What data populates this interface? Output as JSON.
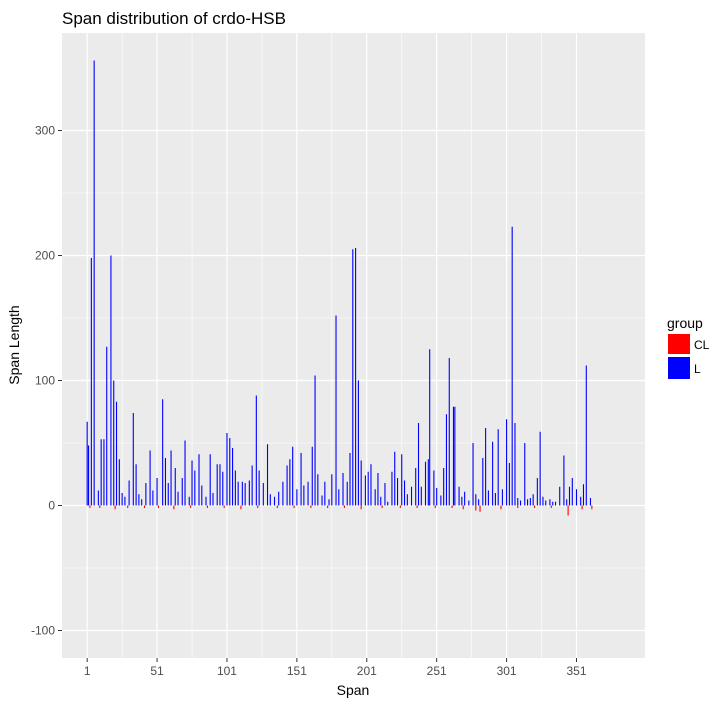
{
  "chart_data": {
    "type": "bar",
    "title": "Span distribution of crdo-HSB",
    "xlabel": "Span",
    "ylabel": "Span Length",
    "xlim": [
      -17,
      400
    ],
    "ylim": [
      -122,
      378
    ],
    "x_ticks": [
      1,
      51,
      101,
      151,
      201,
      251,
      301,
      351
    ],
    "y_ticks": [
      -100,
      0,
      100,
      200,
      300
    ],
    "grid": true,
    "legend": {
      "title": "group",
      "placement": "right",
      "entries": [
        {
          "label": "CL",
          "color": "#ff0000"
        },
        {
          "label": "L",
          "color": "#0000ff"
        }
      ]
    },
    "series": [
      {
        "name": "L",
        "color": "#0000ff",
        "points": [
          [
            1,
            67
          ],
          [
            2,
            48
          ],
          [
            4,
            198
          ],
          [
            6,
            356
          ],
          [
            9,
            12
          ],
          [
            11,
            53
          ],
          [
            13,
            53
          ],
          [
            15,
            127
          ],
          [
            18,
            200
          ],
          [
            20,
            100
          ],
          [
            22,
            83
          ],
          [
            24,
            37
          ],
          [
            26,
            10
          ],
          [
            28,
            7
          ],
          [
            31,
            20
          ],
          [
            34,
            74
          ],
          [
            36,
            33
          ],
          [
            38,
            9
          ],
          [
            40,
            5
          ],
          [
            43,
            18
          ],
          [
            46,
            44
          ],
          [
            48,
            12
          ],
          [
            51,
            22
          ],
          [
            55,
            85
          ],
          [
            57,
            38
          ],
          [
            59,
            18
          ],
          [
            61,
            44
          ],
          [
            64,
            30
          ],
          [
            66,
            11
          ],
          [
            69,
            22
          ],
          [
            71,
            52
          ],
          [
            74,
            7
          ],
          [
            76,
            36
          ],
          [
            78,
            28
          ],
          [
            81,
            41
          ],
          [
            83,
            16
          ],
          [
            86,
            7
          ],
          [
            89,
            41
          ],
          [
            91,
            10
          ],
          [
            94,
            33
          ],
          [
            96,
            33
          ],
          [
            98,
            27
          ],
          [
            101,
            58
          ],
          [
            103,
            54
          ],
          [
            105,
            46
          ],
          [
            107,
            28
          ],
          [
            109,
            19
          ],
          [
            112,
            19
          ],
          [
            114,
            18
          ],
          [
            117,
            20
          ],
          [
            119,
            32
          ],
          [
            122,
            88
          ],
          [
            124,
            28
          ],
          [
            127,
            18
          ],
          [
            130,
            49
          ],
          [
            132,
            9
          ],
          [
            135,
            7
          ],
          [
            138,
            11
          ],
          [
            141,
            19
          ],
          [
            144,
            32
          ],
          [
            146,
            37
          ],
          [
            148,
            47
          ],
          [
            151,
            13
          ],
          [
            154,
            42
          ],
          [
            156,
            16
          ],
          [
            159,
            19
          ],
          [
            162,
            47
          ],
          [
            164,
            104
          ],
          [
            166,
            25
          ],
          [
            169,
            8
          ],
          [
            171,
            19
          ],
          [
            174,
            5
          ],
          [
            176,
            25
          ],
          [
            179,
            152
          ],
          [
            181,
            13
          ],
          [
            184,
            26
          ],
          [
            187,
            19
          ],
          [
            189,
            42
          ],
          [
            191,
            205
          ],
          [
            193,
            206
          ],
          [
            195,
            100
          ],
          [
            197,
            36
          ],
          [
            200,
            24
          ],
          [
            202,
            27
          ],
          [
            204,
            33
          ],
          [
            207,
            13
          ],
          [
            209,
            26
          ],
          [
            211,
            7
          ],
          [
            214,
            18
          ],
          [
            216,
            3
          ],
          [
            219,
            27
          ],
          [
            221,
            43
          ],
          [
            223,
            22
          ],
          [
            226,
            41
          ],
          [
            228,
            20
          ],
          [
            230,
            9
          ],
          [
            233,
            15
          ],
          [
            236,
            30
          ],
          [
            238,
            66
          ],
          [
            240,
            15
          ],
          [
            243,
            35
          ],
          [
            245,
            37
          ],
          [
            246,
            125
          ],
          [
            249,
            28
          ],
          [
            251,
            14
          ],
          [
            254,
            8
          ],
          [
            256,
            30
          ],
          [
            258,
            73
          ],
          [
            260,
            118
          ],
          [
            263,
            79
          ],
          [
            264,
            79
          ],
          [
            267,
            15
          ],
          [
            269,
            7
          ],
          [
            271,
            11
          ],
          [
            274,
            4
          ],
          [
            277,
            50
          ],
          [
            279,
            9
          ],
          [
            281,
            5
          ],
          [
            284,
            38
          ],
          [
            286,
            62
          ],
          [
            288,
            12
          ],
          [
            291,
            51
          ],
          [
            293,
            10
          ],
          [
            295,
            61
          ],
          [
            298,
            13
          ],
          [
            301,
            69
          ],
          [
            303,
            34
          ],
          [
            305,
            223
          ],
          [
            307,
            66
          ],
          [
            309,
            6
          ],
          [
            311,
            4
          ],
          [
            314,
            50
          ],
          [
            316,
            5
          ],
          [
            318,
            6
          ],
          [
            320,
            9
          ],
          [
            323,
            22
          ],
          [
            325,
            59
          ],
          [
            327,
            7
          ],
          [
            329,
            4
          ],
          [
            332,
            5
          ],
          [
            334,
            3
          ],
          [
            336,
            3
          ],
          [
            339,
            15
          ],
          [
            342,
            40
          ],
          [
            344,
            5
          ],
          [
            346,
            15
          ],
          [
            348,
            22
          ],
          [
            351,
            13
          ],
          [
            354,
            7
          ],
          [
            356,
            17
          ],
          [
            358,
            112
          ],
          [
            361,
            6
          ]
        ]
      },
      {
        "name": "CL",
        "color": "#ff0000",
        "points": [
          [
            3,
            -2
          ],
          [
            10,
            -2
          ],
          [
            21,
            -3
          ],
          [
            30,
            -2
          ],
          [
            42,
            -2
          ],
          [
            52,
            -2
          ],
          [
            63,
            -3
          ],
          [
            75,
            -2
          ],
          [
            87,
            -2
          ],
          [
            99,
            -2
          ],
          [
            111,
            -3
          ],
          [
            123,
            -2
          ],
          [
            137,
            -2
          ],
          [
            149,
            -2
          ],
          [
            161,
            -2
          ],
          [
            173,
            -2
          ],
          [
            185,
            -2
          ],
          [
            197,
            -3
          ],
          [
            212,
            -2
          ],
          [
            225,
            -2
          ],
          [
            237,
            -2
          ],
          [
            250,
            -2
          ],
          [
            262,
            -2
          ],
          [
            270,
            -3
          ],
          [
            279,
            -4
          ],
          [
            282,
            -5
          ],
          [
            297,
            -3
          ],
          [
            309,
            -2
          ],
          [
            321,
            -2
          ],
          [
            333,
            -2
          ],
          [
            345,
            -8
          ],
          [
            355,
            -3
          ],
          [
            362,
            -3
          ]
        ]
      }
    ]
  }
}
